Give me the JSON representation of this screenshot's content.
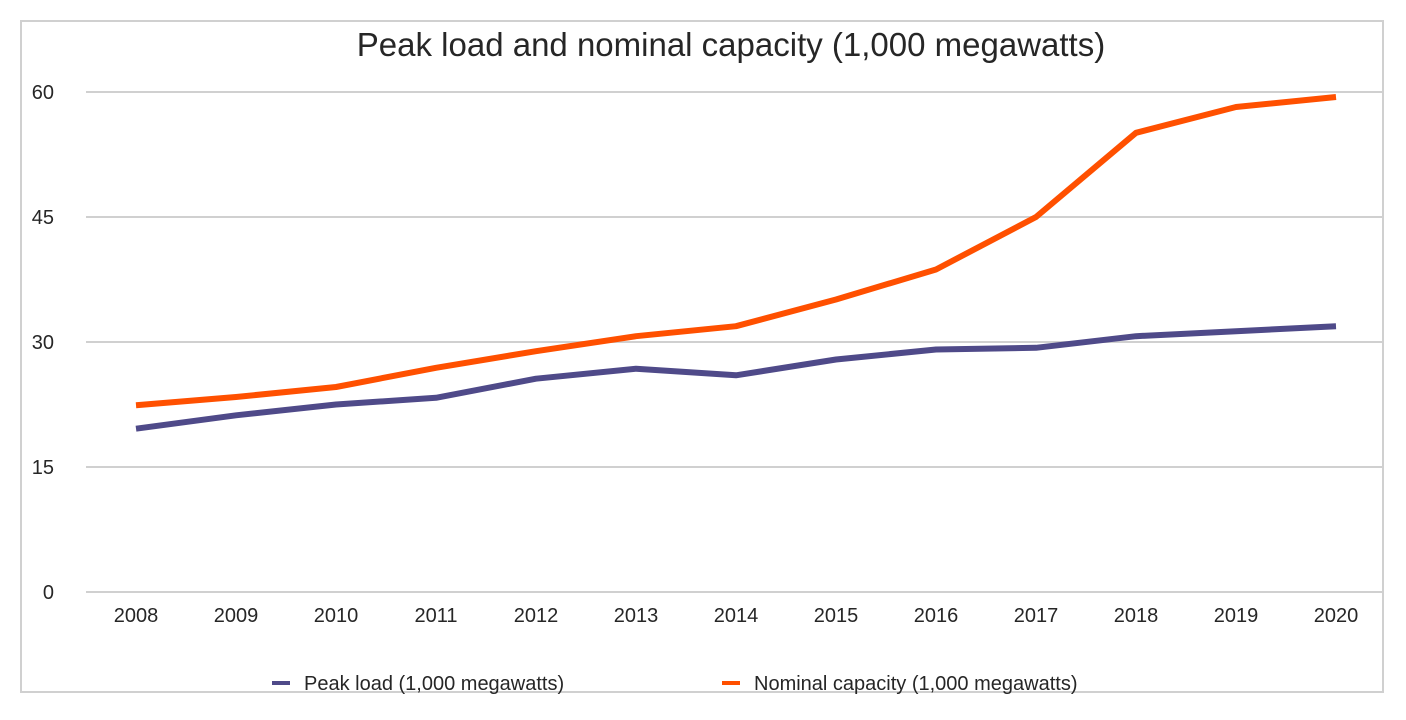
{
  "chart_data": {
    "type": "line",
    "title": "Peak load and nominal capacity (1,000 megawatts)",
    "xlabel": "",
    "ylabel": "",
    "categories": [
      "2008",
      "2009",
      "2010",
      "2011",
      "2012",
      "2013",
      "2014",
      "2015",
      "2016",
      "2017",
      "2018",
      "2019",
      "2020"
    ],
    "ylim": [
      0,
      60
    ],
    "yticks": [
      "0",
      "15",
      "30",
      "45",
      "60"
    ],
    "ytick_values": [
      0,
      15,
      30,
      45,
      60
    ],
    "grid": true,
    "legend_position": "bottom",
    "series": [
      {
        "name": "Peak load (1,000 megawatts)",
        "color": "#4f4a89",
        "values": [
          19.6,
          21.2,
          22.5,
          23.3,
          25.6,
          26.8,
          26.0,
          27.9,
          29.1,
          29.3,
          30.7,
          31.3,
          31.9
        ]
      },
      {
        "name": "Nominal capacity (1,000 megawatts)",
        "color": "#ff5000",
        "values": [
          22.4,
          23.4,
          24.6,
          26.9,
          28.9,
          30.7,
          31.9,
          35.1,
          38.7,
          45.0,
          55.1,
          58.2,
          59.4
        ]
      }
    ],
    "gridline_color": "#d0d0d0",
    "text_color": "#262626"
  }
}
